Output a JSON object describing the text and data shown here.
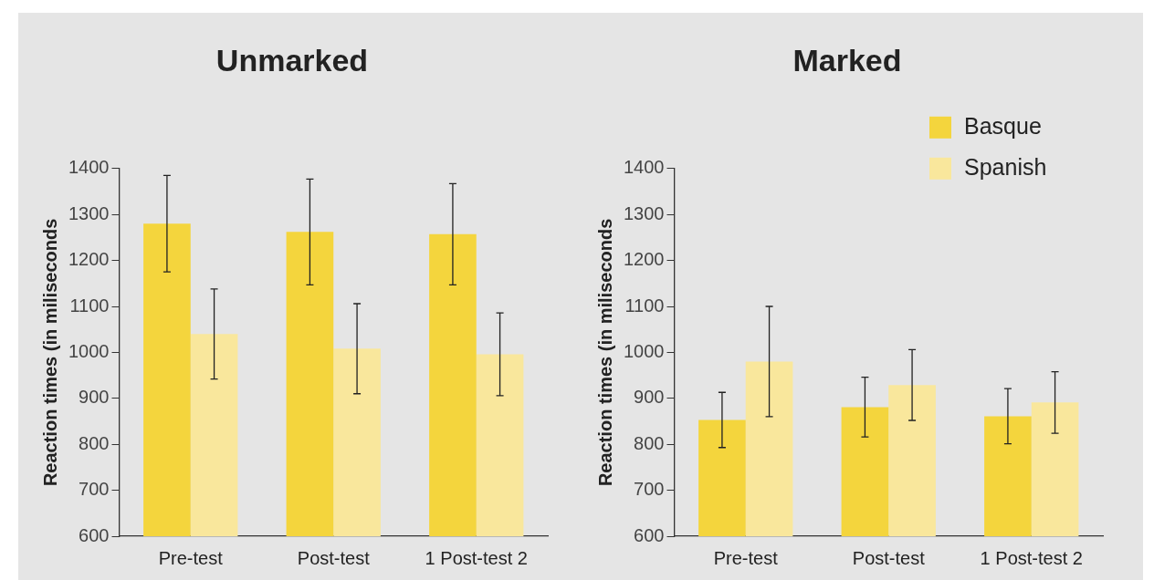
{
  "chart_data": [
    {
      "type": "bar",
      "title": "Unmarked",
      "ylabel": "Reaction times (in miliseconds",
      "categories": [
        "Pre-test",
        "Post-test",
        "1 Post-test 2"
      ],
      "series": [
        {
          "color": "#f4d53d",
          "values": [
            1280,
            1262,
            1257
          ],
          "errors": [
            105,
            115,
            110
          ]
        },
        {
          "color": "#f9e79c",
          "values": [
            1040,
            1008,
            996
          ],
          "errors": [
            98,
            98,
            90
          ]
        }
      ],
      "ylim": [
        600,
        1400
      ],
      "yticks": [
        600,
        700,
        800,
        900,
        1000,
        1100,
        1200,
        1300,
        1400
      ],
      "grid": false,
      "legend": false
    },
    {
      "type": "bar",
      "title": "Marked",
      "ylabel": "Reaction times (in miliseconds",
      "categories": [
        "Pre-test",
        "Post-test",
        "1 Post-test 2"
      ],
      "series": [
        {
          "name": "Basque",
          "color": "#f4d53d",
          "values": [
            853,
            881,
            861
          ],
          "errors": [
            60,
            65,
            60
          ]
        },
        {
          "name": "Spanish",
          "color": "#f9e79c",
          "values": [
            980,
            929,
            891
          ],
          "errors": [
            120,
            77,
            67
          ]
        }
      ],
      "ylim": [
        600,
        1400
      ],
      "yticks": [
        600,
        700,
        800,
        900,
        1000,
        1100,
        1200,
        1300,
        1400
      ],
      "grid": false,
      "legend": "top right"
    }
  ]
}
